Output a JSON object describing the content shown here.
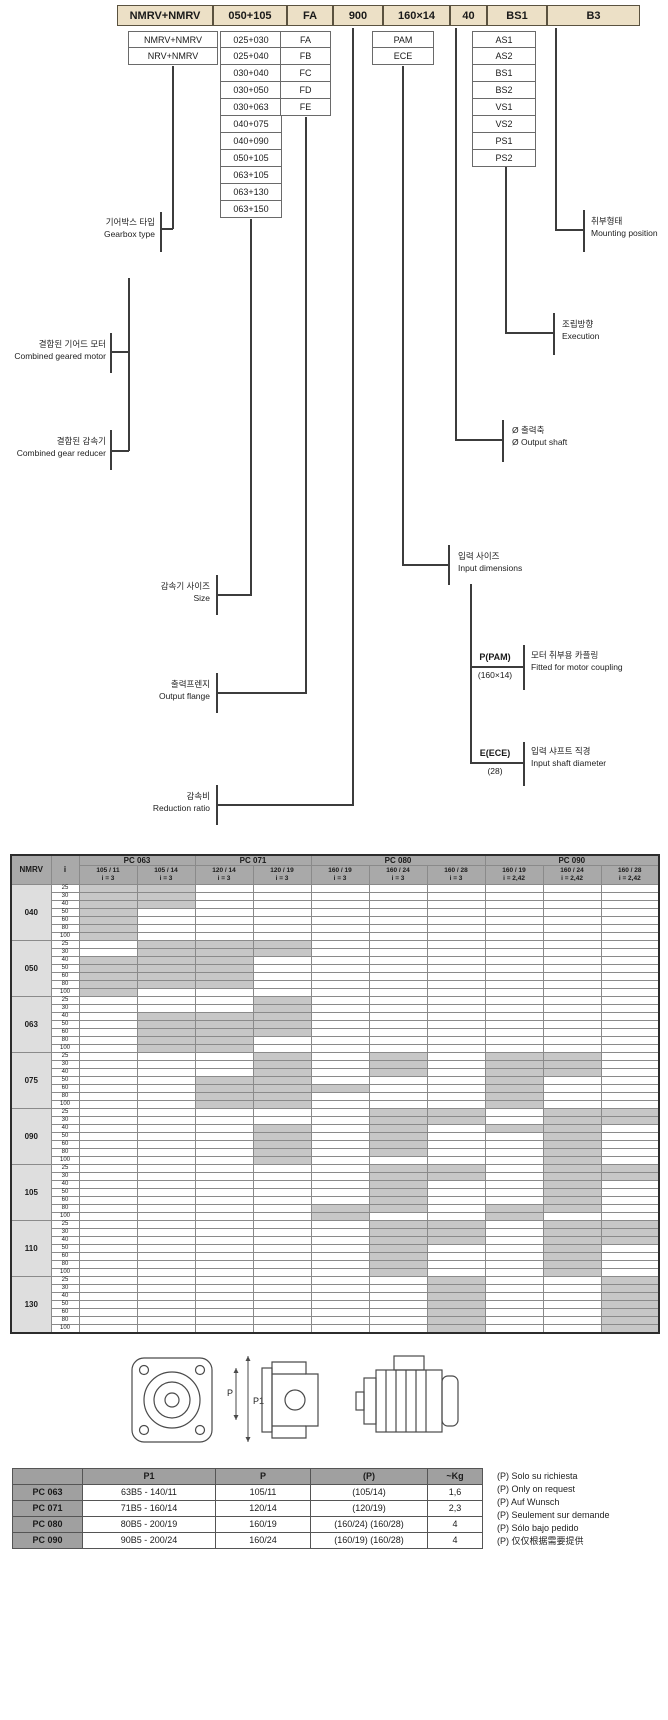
{
  "code_boxes": [
    "NMRV+NMRV",
    "050+105",
    "FA",
    "900",
    "160×14",
    "40",
    "BS1",
    "B3"
  ],
  "option_columns": {
    "types": [
      "NMRV+NMRV",
      "NRV+NMRV"
    ],
    "sizes": [
      "025+030",
      "025+040",
      "030+040",
      "030+050",
      "030+063",
      "040+075",
      "040+090",
      "050+105",
      "063+105",
      "063+130",
      "063+150"
    ],
    "flanges": [
      "FA",
      "FB",
      "FC",
      "FD",
      "FE"
    ],
    "inputs": [
      "PAM",
      "ECE"
    ],
    "executions": [
      "AS1",
      "AS2",
      "BS1",
      "BS2",
      "VS1",
      "VS2",
      "PS1",
      "PS2"
    ]
  },
  "callouts": {
    "gearbox_type": {
      "ko": "기어박스 타입",
      "en": "Gearbox type"
    },
    "combined_geared_motor": {
      "ko": "결합된 기어드 모터",
      "en": "Combined geared motor"
    },
    "combined_gear_reducer": {
      "ko": "결합된 감속기",
      "en": "Combined gear reducer"
    },
    "size": {
      "ko": "감속기 사이즈",
      "en": "Size"
    },
    "output_flange": {
      "ko": "출력프렌지",
      "en": "Output flange"
    },
    "reduction_ratio": {
      "ko": "감속비",
      "en": "Reduction ratio"
    },
    "input_dimensions": {
      "ko": "입력 사이즈",
      "en": "Input dimensions"
    },
    "output_shaft": {
      "ko": "Ø 출력축",
      "en": "Ø Output shaft"
    },
    "execution": {
      "ko": "조립방향",
      "en": "Execution"
    },
    "mounting_position": {
      "ko": "취부형태",
      "en": "Mounting position"
    },
    "motor_coupling": {
      "code": "P(PAM)",
      "value": "(160×14)",
      "ko": "모터 취부용 카플링",
      "en": "Fitted for motor coupling"
    },
    "input_shaft": {
      "code": "E(ECE)",
      "value": "(28)",
      "ko": "입력 샤프트 직경",
      "en": "Input shaft diameter"
    }
  },
  "matrix_table": {
    "corner_label": "NMRV",
    "i_label": "i",
    "col_groups": [
      {
        "label": "PC 063",
        "subs": [
          {
            "size": "105 / 11",
            "ratio": "i = 3"
          },
          {
            "size": "105 / 14",
            "ratio": "i = 3"
          }
        ]
      },
      {
        "label": "PC 071",
        "subs": [
          {
            "size": "120 / 14",
            "ratio": "i = 3"
          },
          {
            "size": "120 / 19",
            "ratio": "i = 3"
          }
        ]
      },
      {
        "label": "PC 080",
        "subs": [
          {
            "size": "160 / 19",
            "ratio": "i = 3"
          },
          {
            "size": "160 / 24",
            "ratio": "i = 3"
          },
          {
            "size": "160 / 28",
            "ratio": "i = 3"
          }
        ]
      },
      {
        "label": "PC 090",
        "subs": [
          {
            "size": "160 / 19",
            "ratio": "i = 2,42"
          },
          {
            "size": "160 / 24",
            "ratio": "i = 2,42"
          },
          {
            "size": "160 / 28",
            "ratio": "i = 2,42"
          }
        ]
      }
    ],
    "i_values": [
      "25",
      "30",
      "40",
      "50",
      "60",
      "80",
      "100"
    ],
    "rows": [
      {
        "nmrv": "040",
        "cells": [
          [
            0,
            1
          ],
          [
            0,
            1
          ],
          [
            0,
            1
          ],
          [
            0
          ],
          [
            0
          ],
          [
            0
          ],
          [
            0
          ]
        ]
      },
      {
        "nmrv": "050",
        "cells": [
          [
            1,
            2,
            3
          ],
          [
            1,
            2,
            3
          ],
          [
            0,
            1,
            2
          ],
          [
            0,
            1,
            2
          ],
          [
            0,
            1,
            2
          ],
          [
            0,
            1,
            2
          ],
          [
            0
          ]
        ]
      },
      {
        "nmrv": "063",
        "cells": [
          [
            3
          ],
          [
            3
          ],
          [
            1,
            2,
            3
          ],
          [
            1,
            2,
            3
          ],
          [
            1,
            2,
            3
          ],
          [
            1,
            2
          ],
          [
            1,
            2
          ]
        ]
      },
      {
        "nmrv": "075",
        "cells": [
          [
            3,
            5,
            7,
            8
          ],
          [
            3,
            5,
            7,
            8
          ],
          [
            3,
            5,
            7,
            8
          ],
          [
            2,
            3,
            7
          ],
          [
            2,
            3,
            4,
            7
          ],
          [
            2,
            3,
            7
          ],
          [
            2,
            3,
            7
          ]
        ]
      },
      {
        "nmrv": "090",
        "cells": [
          [
            5,
            6,
            8,
            9
          ],
          [
            5,
            6,
            8,
            9
          ],
          [
            3,
            5,
            7,
            8
          ],
          [
            3,
            5,
            8
          ],
          [
            3,
            5,
            8
          ],
          [
            3,
            5,
            8
          ],
          [
            3,
            8
          ]
        ]
      },
      {
        "nmrv": "105",
        "cells": [
          [
            5,
            6,
            8,
            9
          ],
          [
            5,
            6,
            8,
            9
          ],
          [
            5,
            8
          ],
          [
            5,
            8
          ],
          [
            5,
            8
          ],
          [
            4,
            5,
            7,
            8
          ],
          [
            4,
            7
          ]
        ]
      },
      {
        "nmrv": "110",
        "cells": [
          [
            5,
            6,
            8,
            9
          ],
          [
            5,
            6,
            8,
            9
          ],
          [
            5,
            6,
            8,
            9
          ],
          [
            5,
            8
          ],
          [
            5,
            8
          ],
          [
            5,
            8
          ],
          [
            5,
            8
          ]
        ]
      },
      {
        "nmrv": "130",
        "cells": [
          [
            6,
            9
          ],
          [
            6,
            9
          ],
          [
            6,
            9
          ],
          [
            6,
            9
          ],
          [
            6,
            9
          ],
          [
            6,
            9
          ],
          [
            6,
            9
          ]
        ]
      }
    ]
  },
  "dimensions": {
    "p": "P",
    "p1": "P1"
  },
  "bottom_table": {
    "headers": [
      "",
      "P1",
      "P",
      "(P)",
      "~Kg"
    ],
    "rows": [
      [
        "PC 063",
        "63B5 - 140/11",
        "105/11",
        "(105/14)",
        "1,6"
      ],
      [
        "PC 071",
        "71B5 - 160/14",
        "120/14",
        "(120/19)",
        "2,3"
      ],
      [
        "PC 080",
        "80B5 - 200/19",
        "160/19",
        "(160/24) (160/28)",
        "4"
      ],
      [
        "PC 090",
        "90B5 - 200/24",
        "160/24",
        "(160/19) (160/28)",
        "4"
      ]
    ],
    "notes": [
      "(P) Solo su richiesta",
      "(P) Only on request",
      "(P) Auf Wunsch",
      "(P) Seulement sur demande",
      "(P) Sólo bajo pedido",
      "(P) 仅仅根据需要提供"
    ]
  },
  "colors": {
    "code_box_bg": "#ece0c6",
    "header_gray": "#a9a9a9",
    "filled_cell": "#c7c7c7",
    "group_label_bg": "#dedede"
  }
}
